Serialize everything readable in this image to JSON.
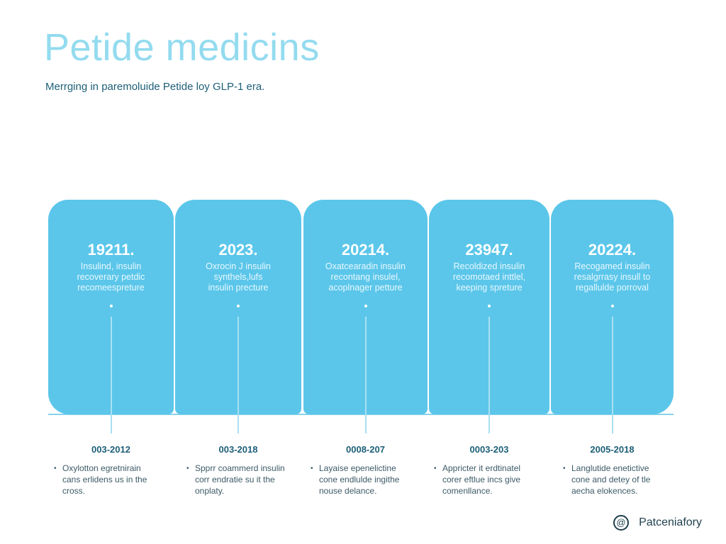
{
  "header": {
    "title": "Petide medicins",
    "subtitle": "Merrging in paremoluide Petide loy GLP-1 era."
  },
  "timeline": [
    {
      "year": "19211.",
      "lines": [
        "Insulind, insulin",
        "recoverary petdic",
        "recomeespreture"
      ],
      "period": "003-2012",
      "notes": [
        "Oxylotton egretnirain",
        "cans erlidens us in the",
        "cross."
      ]
    },
    {
      "year": "2023.",
      "lines": [
        "Oxrocin J insulin",
        "synthels,lufs",
        "insulin precture"
      ],
      "period": "003-2018",
      "notes": [
        "Spprr coammerd insulin",
        "corr endratie su it the",
        "onplaty."
      ]
    },
    {
      "year": "20214.",
      "lines": [
        "Oxatcearadin insulin",
        "recontang insulel,",
        "acoplnager petture"
      ],
      "period": "0008-207",
      "notes": [
        "Layaise epenelictine",
        "cone endlulde ingithe",
        "nouse delance."
      ]
    },
    {
      "year": "23947.",
      "lines": [
        "Recoldized insulin",
        "recomotaed inttlel,",
        "keeping spreture"
      ],
      "period": "0003-203",
      "notes": [
        "Appricter it erdtinatel",
        "corer eftlue incs give",
        "comenllance."
      ]
    },
    {
      "year": "20224.",
      "lines": [
        "Recogamed insulin",
        "resalgrrasy insull to",
        "regallulde porroval"
      ],
      "period": "2005-2018",
      "notes": [
        "Langlutide enetictive",
        "cone and detey of tle",
        "aecha elokences."
      ]
    }
  ],
  "footer": {
    "brand": "Patceniafory"
  }
}
